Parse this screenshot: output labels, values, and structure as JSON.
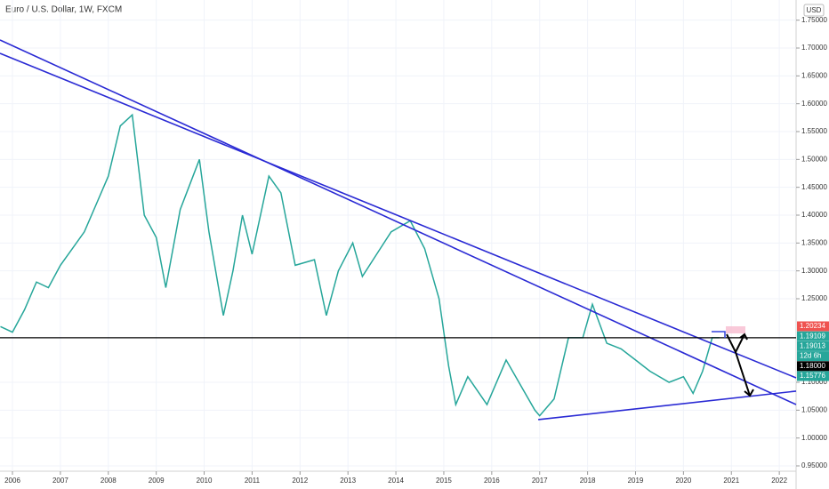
{
  "chart_data": {
    "type": "line",
    "title": "Euro / U.S. Dollar, 1W, FXCM",
    "currency": "USD",
    "color": "#26a69a",
    "x": [
      2005.75,
      2006.0,
      2006.25,
      2006.5,
      2006.75,
      2007.0,
      2007.25,
      2007.5,
      2007.75,
      2008.0,
      2008.25,
      2008.5,
      2008.75,
      2009.0,
      2009.2,
      2009.5,
      2009.9,
      2010.1,
      2010.4,
      2010.6,
      2010.8,
      2011.0,
      2011.35,
      2011.6,
      2011.9,
      2012.3,
      2012.55,
      2012.8,
      2013.1,
      2013.3,
      2013.6,
      2013.9,
      2014.3,
      2014.6,
      2014.9,
      2015.1,
      2015.25,
      2015.5,
      2015.9,
      2016.3,
      2016.5,
      2016.9,
      2017.0,
      2017.3,
      2017.6,
      2017.9,
      2018.1,
      2018.4,
      2018.7,
      2019.0,
      2019.3,
      2019.7,
      2020.0,
      2020.2,
      2020.4,
      2020.6,
      2020.75
    ],
    "values": [
      1.2,
      1.19,
      1.23,
      1.28,
      1.27,
      1.31,
      1.34,
      1.37,
      1.42,
      1.47,
      1.56,
      1.58,
      1.4,
      1.36,
      1.27,
      1.41,
      1.5,
      1.37,
      1.22,
      1.3,
      1.4,
      1.33,
      1.47,
      1.44,
      1.31,
      1.32,
      1.22,
      1.3,
      1.35,
      1.29,
      1.33,
      1.37,
      1.39,
      1.34,
      1.25,
      1.13,
      1.06,
      1.11,
      1.06,
      1.14,
      1.11,
      1.05,
      1.04,
      1.07,
      1.18,
      1.18,
      1.24,
      1.17,
      1.16,
      1.14,
      1.12,
      1.1,
      1.11,
      1.08,
      1.12,
      1.18,
      1.18
    ],
    "xlim": [
      2005.74,
      2022.35
    ],
    "ylim": [
      0.9404,
      1.7862
    ],
    "xticks": [
      2006,
      2007,
      2008,
      2009,
      2010,
      2011,
      2012,
      2013,
      2014,
      2015,
      2016,
      2017,
      2018,
      2019,
      2020,
      2021,
      2022
    ],
    "yticks": [
      {
        "value": 0.95,
        "label": "0.95000"
      },
      {
        "value": 1.0,
        "label": "1.00000"
      },
      {
        "value": 1.05,
        "label": "1.05000"
      },
      {
        "value": 1.1,
        "label": "1.10000"
      },
      {
        "value": 1.25,
        "label": "1.25000"
      },
      {
        "value": 1.3,
        "label": "1.30000"
      },
      {
        "value": 1.35,
        "label": "1.35000"
      },
      {
        "value": 1.4,
        "label": "1.40000"
      },
      {
        "value": 1.45,
        "label": "1.45000"
      },
      {
        "value": 1.5,
        "label": "1.50000"
      },
      {
        "value": 1.55,
        "label": "1.55000"
      },
      {
        "value": 1.6,
        "label": "1.60000"
      },
      {
        "value": 1.65,
        "label": "1.65000"
      },
      {
        "value": 1.7,
        "label": "1.70000"
      },
      {
        "value": 1.75,
        "label": "1.75000"
      }
    ],
    "trendlines": [
      {
        "x": [
          2005.74,
          2022.35
        ],
        "y": [
          1.7144,
          1.0601
        ]
      },
      {
        "x": [
          2005.74,
          2022.35
        ],
        "y": [
          1.6905,
          1.108
        ]
      },
      {
        "x": [
          2016.97,
          2022.35
        ],
        "y": [
          1.033,
          1.0841
        ]
      }
    ],
    "hline": 1.18,
    "price_labels": [
      {
        "value": 1.20234,
        "color": "#ef5350"
      },
      {
        "value": 1.19109,
        "color": "#26a69a"
      },
      {
        "value": 1.19013,
        "color": "#26a69a"
      },
      {
        "text": "12d 6h",
        "color": "#26a69a"
      },
      {
        "value": 1.18,
        "label": "1.18000",
        "color": "#000000"
      },
      {
        "value": 1.15776,
        "color": "#26a69a"
      }
    ]
  }
}
